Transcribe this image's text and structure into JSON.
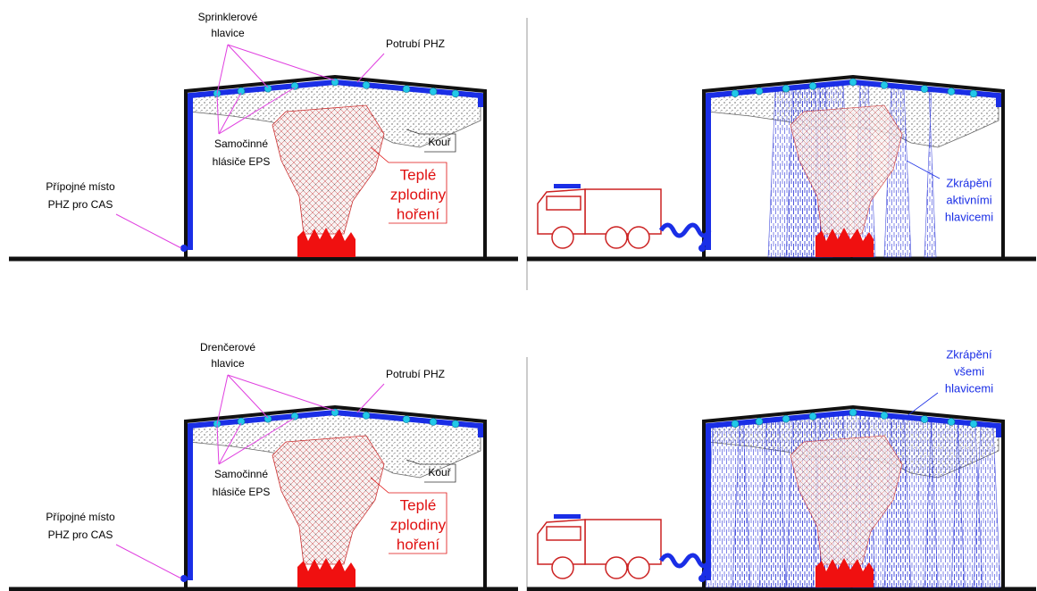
{
  "panels": [
    {
      "heads_label": [
        "Sprinklerové",
        "hlavice"
      ],
      "pipe_label": "Potrubí PHZ",
      "smoke_label": "Kouř",
      "detectors_label": [
        "Samočinné",
        "hlásiče EPS"
      ],
      "inlet_label": [
        "Přípojné místo",
        "PHZ pro CAS"
      ],
      "fire_label": [
        "Teplé",
        "zplodiny",
        "hoření"
      ]
    },
    {
      "spray_label": [
        "Zkrápění",
        "aktivními",
        "hlavicemi"
      ]
    },
    {
      "heads_label": [
        "Drenčerové",
        "hlavice"
      ],
      "pipe_label": "Potrubí PHZ",
      "smoke_label": "Kouř",
      "detectors_label": [
        "Samočinné",
        "hlásiče EPS"
      ],
      "inlet_label": [
        "Přípojné místo",
        "PHZ pro CAS"
      ],
      "fire_label": [
        "Teplé",
        "zplodiny",
        "hoření"
      ]
    },
    {
      "spray_label": [
        "Zkrápění",
        "všemi",
        "hlavicemi"
      ]
    }
  ]
}
